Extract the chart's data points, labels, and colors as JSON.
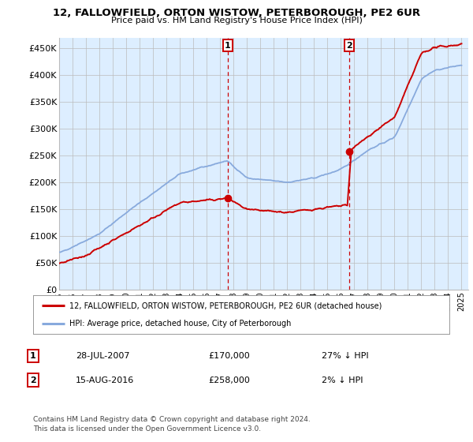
{
  "title": "12, FALLOWFIELD, ORTON WISTOW, PETERBOROUGH, PE2 6UR",
  "subtitle": "Price paid vs. HM Land Registry's House Price Index (HPI)",
  "ylabel_ticks": [
    "£0",
    "£50K",
    "£100K",
    "£150K",
    "£200K",
    "£250K",
    "£300K",
    "£350K",
    "£400K",
    "£450K"
  ],
  "ytick_values": [
    0,
    50000,
    100000,
    150000,
    200000,
    250000,
    300000,
    350000,
    400000,
    450000
  ],
  "ylim": [
    0,
    470000
  ],
  "xlim_start": 1995.0,
  "xlim_end": 2025.5,
  "sale1_year": 2007.57,
  "sale1_price": 170000,
  "sale2_year": 2016.62,
  "sale2_price": 258000,
  "legend_line1": "12, FALLOWFIELD, ORTON WISTOW, PETERBOROUGH, PE2 6UR (detached house)",
  "legend_line2": "HPI: Average price, detached house, City of Peterborough",
  "table_row1_num": "1",
  "table_row1_date": "28-JUL-2007",
  "table_row1_price": "£170,000",
  "table_row1_hpi": "27% ↓ HPI",
  "table_row2_num": "2",
  "table_row2_date": "15-AUG-2016",
  "table_row2_price": "£258,000",
  "table_row2_hpi": "2% ↓ HPI",
  "footnote": "Contains HM Land Registry data © Crown copyright and database right 2024.\nThis data is licensed under the Open Government Licence v3.0.",
  "red_color": "#cc0000",
  "blue_color": "#88aadd",
  "bg_color": "#ddeeff",
  "plot_bg": "#ffffff",
  "grid_color": "#bbbbbb"
}
